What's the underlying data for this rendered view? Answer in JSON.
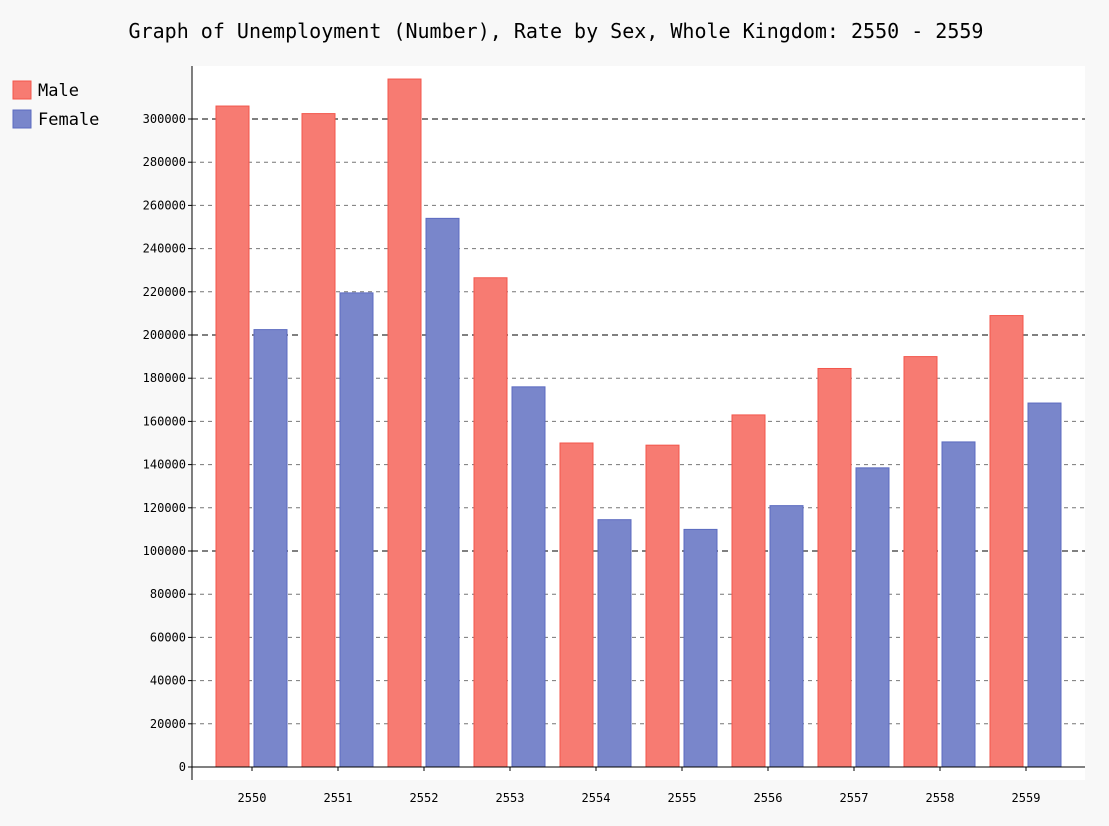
{
  "chart_data": {
    "type": "bar",
    "title": "Graph of Unemployment (Number), Rate by Sex, Whole Kingdom: 2550 - 2559",
    "categories": [
      "2550",
      "2551",
      "2552",
      "2553",
      "2554",
      "2555",
      "2556",
      "2557",
      "2558",
      "2559"
    ],
    "series": [
      {
        "name": "Male",
        "color": "#f77b72",
        "stroke": "#f3564b",
        "values": [
          306000,
          302500,
          318500,
          226500,
          150000,
          149000,
          163000,
          184500,
          190000,
          209000
        ]
      },
      {
        "name": "Female",
        "color": "#7986cb",
        "stroke": "#5c6bc0",
        "values": [
          202500,
          219500,
          254000,
          176000,
          114500,
          110000,
          121000,
          138500,
          150500,
          168500
        ]
      }
    ],
    "yticks": [
      "0",
      "20000",
      "40000",
      "60000",
      "80000",
      "100000",
      "120000",
      "140000",
      "160000",
      "180000",
      "200000",
      "220000",
      "240000",
      "260000",
      "280000",
      "300000"
    ],
    "ylim": [
      0,
      320000
    ],
    "ystep": 20000,
    "major_gridlines": [
      100000,
      200000,
      300000
    ],
    "grid": true,
    "legend_position": "top-left"
  }
}
